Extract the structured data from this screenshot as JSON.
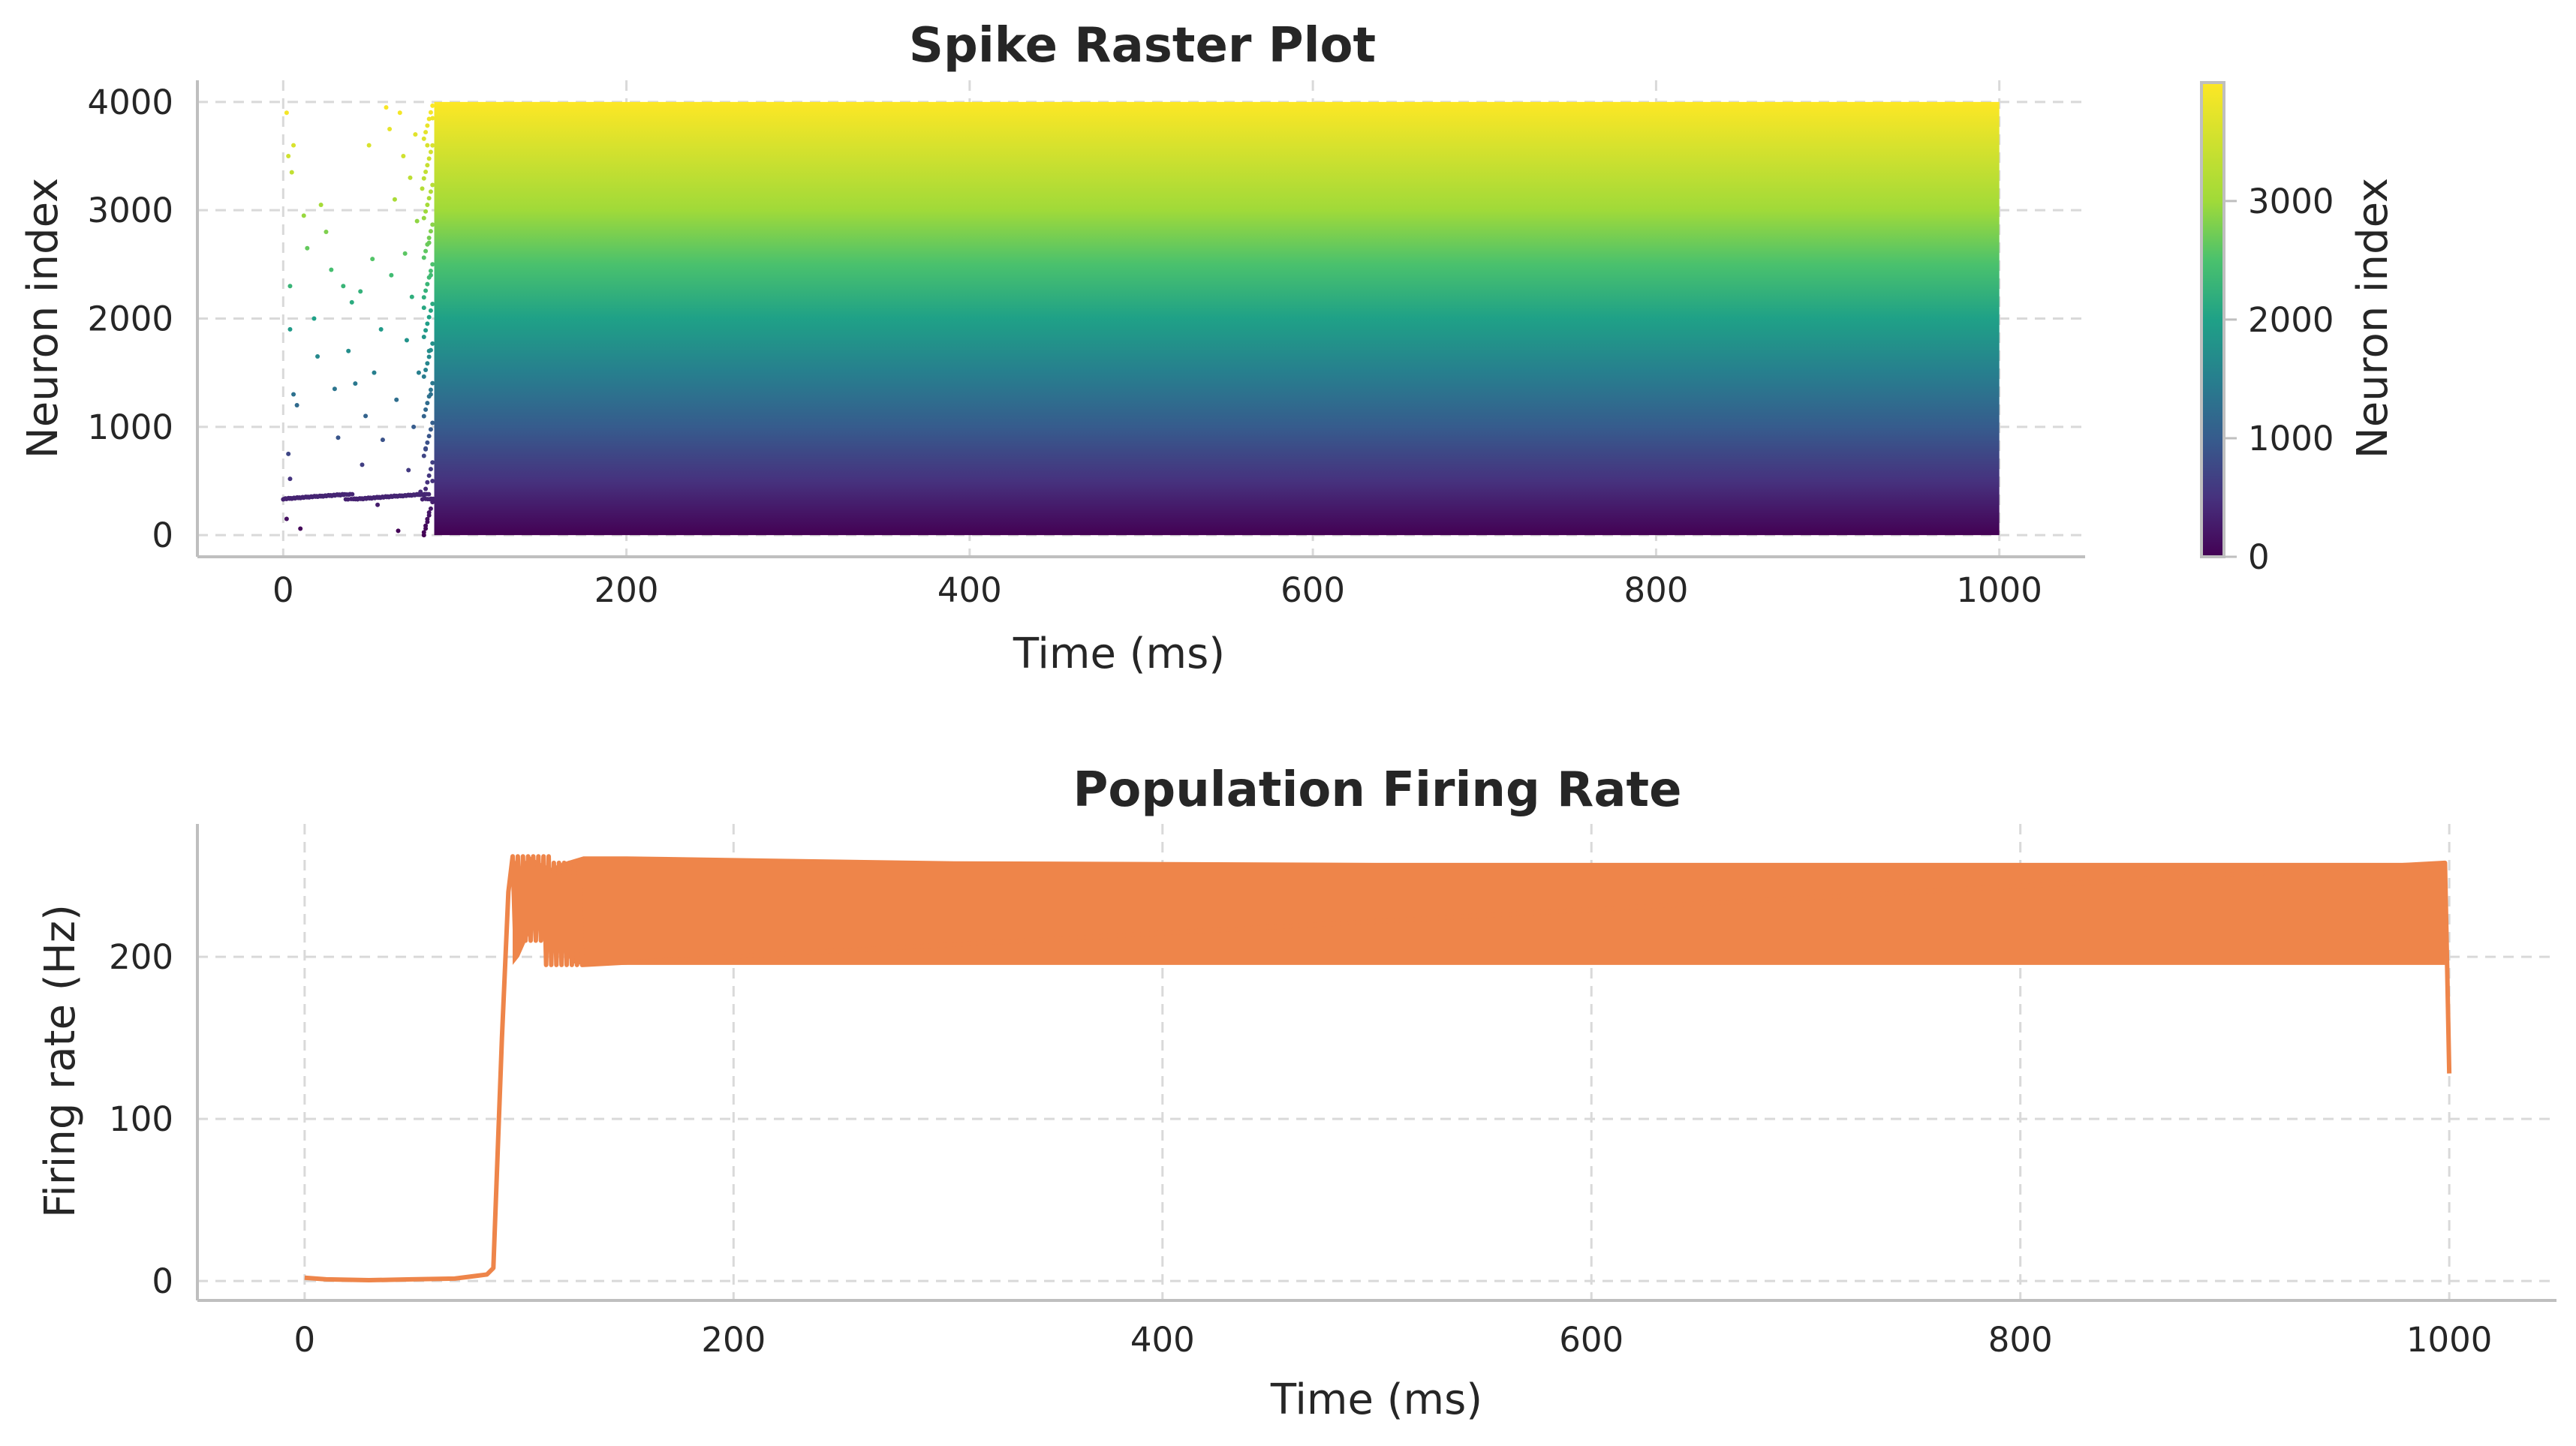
{
  "chart_data": [
    {
      "type": "scatter",
      "title": "Spike Raster Plot",
      "xlabel": "Time (ms)",
      "ylabel": "Neuron index",
      "xlim": [
        -50,
        1050
      ],
      "ylim": [
        -200,
        4200
      ],
      "xticks": [
        0,
        200,
        400,
        600,
        800,
        1000
      ],
      "yticks": [
        0,
        1000,
        2000,
        3000,
        4000
      ],
      "grid": true,
      "colormap": "viridis",
      "colors": [
        "#440154",
        "#3b528b",
        "#21918c",
        "#5ec962",
        "#fde725"
      ],
      "dense_region": {
        "x": [
          88,
          1000
        ],
        "y": [
          0,
          4000
        ]
      },
      "early_sparse_band": {
        "x": [
          0,
          88
        ],
        "y": [
          330,
          380
        ]
      },
      "early_sparse_window_ms": [
        0,
        88
      ],
      "early_spikes": [
        [
          2,
          3900
        ],
        [
          3,
          3500
        ],
        [
          5,
          3350
        ],
        [
          6,
          3600
        ],
        [
          4,
          2300
        ],
        [
          4,
          1900
        ],
        [
          6,
          1300
        ],
        [
          8,
          1200
        ],
        [
          3,
          750
        ],
        [
          4,
          520
        ],
        [
          2,
          150
        ],
        [
          10,
          60
        ],
        [
          12,
          2950
        ],
        [
          14,
          2650
        ],
        [
          18,
          2000
        ],
        [
          20,
          1650
        ],
        [
          22,
          3050
        ],
        [
          25,
          2800
        ],
        [
          28,
          2450
        ],
        [
          30,
          1350
        ],
        [
          32,
          900
        ],
        [
          35,
          2300
        ],
        [
          38,
          1700
        ],
        [
          40,
          2150
        ],
        [
          42,
          1400
        ],
        [
          45,
          2250
        ],
        [
          46,
          650
        ],
        [
          48,
          1100
        ],
        [
          50,
          3600
        ],
        [
          52,
          2550
        ],
        [
          53,
          1500
        ],
        [
          55,
          280
        ],
        [
          57,
          1900
        ],
        [
          58,
          880
        ],
        [
          60,
          3950
        ],
        [
          62,
          3750
        ],
        [
          63,
          2400
        ],
        [
          65,
          3100
        ],
        [
          66,
          1250
        ],
        [
          67,
          40
        ],
        [
          68,
          3900
        ],
        [
          70,
          3500
        ],
        [
          71,
          2600
        ],
        [
          72,
          1800
        ],
        [
          73,
          600
        ],
        [
          74,
          3300
        ],
        [
          75,
          2200
        ],
        [
          76,
          1000
        ],
        [
          77,
          3700
        ],
        [
          78,
          2900
        ],
        [
          79,
          1500
        ],
        [
          80,
          400
        ],
        [
          81,
          3200
        ],
        [
          82,
          2100
        ],
        [
          83,
          800
        ],
        [
          84,
          3600
        ],
        [
          85,
          2700
        ],
        [
          86,
          1300
        ],
        [
          87,
          500
        ],
        [
          87,
          3850
        ],
        [
          86,
          2400
        ],
        [
          85,
          1700
        ]
      ],
      "colorbar": {
        "label": "Neuron index",
        "range": [
          0,
          3999
        ],
        "ticks": [
          0,
          1000,
          2000,
          3000
        ]
      }
    },
    {
      "type": "line",
      "title": "Population Firing Rate",
      "xlabel": "Time (ms)",
      "ylabel": "Firing rate (Hz)",
      "xlim": [
        -50,
        1050
      ],
      "ylim": [
        -12,
        282
      ],
      "xticks": [
        0,
        200,
        400,
        600,
        800,
        1000
      ],
      "yticks": [
        0,
        100,
        200
      ],
      "grid": true,
      "color": "#ee854a",
      "series": [
        {
          "name": "",
          "envelope": [
            [
              0,
              2,
              2
            ],
            [
              10,
              1,
              1
            ],
            [
              30,
              0.5,
              0.5
            ],
            [
              50,
              1,
              1
            ],
            [
              70,
              1.5,
              1.5
            ],
            [
              85,
              4,
              4
            ],
            [
              88,
              8,
              8
            ],
            [
              92,
              150,
              150
            ],
            [
              95,
              240,
              240
            ],
            [
              97,
              195,
              262
            ],
            [
              100,
              200,
              255
            ],
            [
              105,
              215,
              262
            ],
            [
              110,
              220,
              258
            ],
            [
              115,
              215,
              255
            ],
            [
              120,
              205,
              258
            ],
            [
              125,
              196,
              260
            ],
            [
              130,
              195,
              262
            ],
            [
              150,
              195,
              262
            ],
            [
              200,
              195,
              261
            ],
            [
              300,
              195,
              259
            ],
            [
              500,
              195,
              258
            ],
            [
              700,
              195,
              258
            ],
            [
              900,
              195,
              258
            ],
            [
              998,
              195,
              258
            ]
          ],
          "end_points": [
            [
              999,
              195
            ],
            [
              1000,
              128
            ]
          ]
        }
      ]
    }
  ]
}
